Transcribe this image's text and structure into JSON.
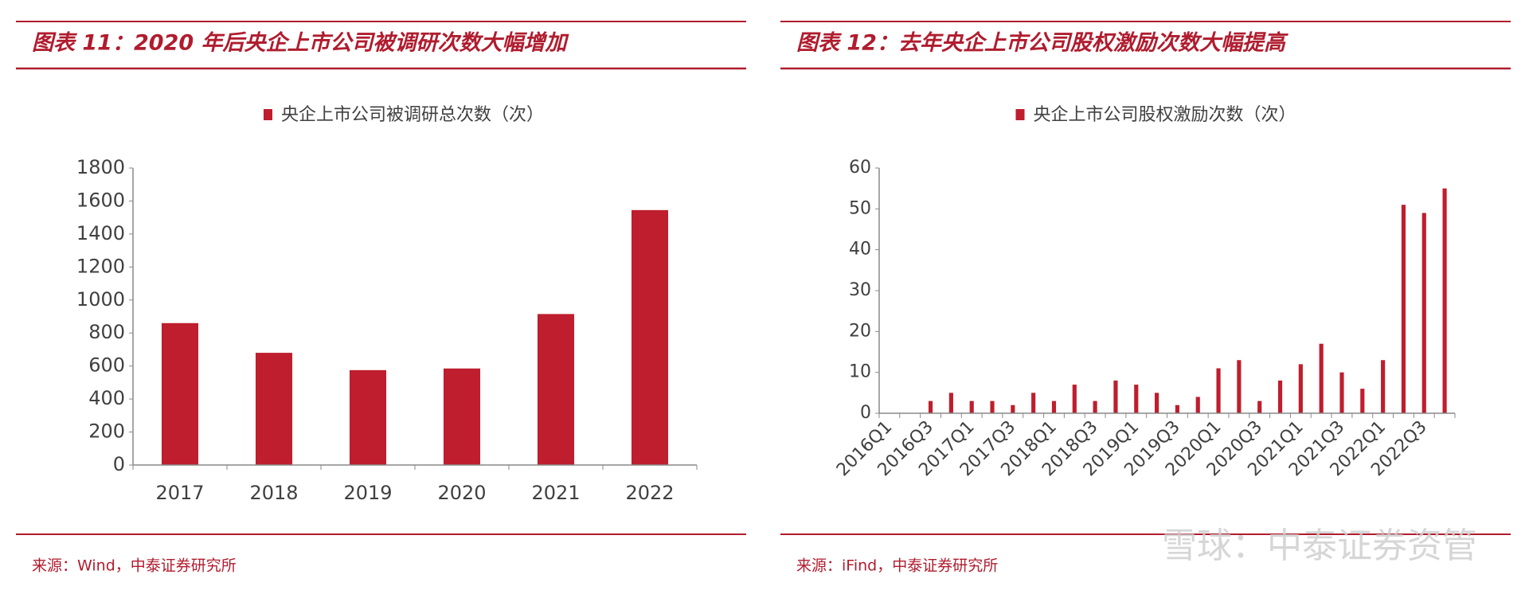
{
  "chart_data": [
    {
      "type": "bar",
      "title": "图表 11：2020 年后央企上市公司被调研次数大幅增加",
      "source": "来源：Wind，中泰证券研究所",
      "categories": [
        "2017",
        "2018",
        "2019",
        "2020",
        "2021",
        "2022"
      ],
      "series": [
        {
          "name": "央企上市公司被调研总次数（次）",
          "color": "#be1e2d",
          "values": [
            860,
            680,
            575,
            585,
            915,
            1545
          ]
        }
      ],
      "ylim": [
        0,
        1800
      ],
      "yticks": [
        0,
        200,
        400,
        600,
        800,
        1000,
        1200,
        1400,
        1600,
        1800
      ],
      "grid": false
    },
    {
      "type": "bar",
      "title": "图表 12：去年央企上市公司股权激励次数大幅提高",
      "source": "来源：iFind，中泰证券研究所",
      "categories": [
        "2016Q1",
        null,
        "2016Q3",
        null,
        "2017Q1",
        null,
        "2017Q3",
        null,
        "2018Q1",
        null,
        "2018Q3",
        null,
        "2019Q1",
        null,
        "2019Q3",
        null,
        "2020Q1",
        null,
        "2020Q3",
        null,
        "2021Q1",
        null,
        "2021Q3",
        null,
        "2022Q1",
        null,
        "2022Q3",
        null
      ],
      "series": [
        {
          "name": "央企上市公司股权激励次数（次）",
          "color": "#be1e2d",
          "values": [
            0,
            0,
            3,
            5,
            3,
            3,
            2,
            5,
            3,
            7,
            3,
            8,
            7,
            5,
            2,
            4,
            11,
            13,
            3,
            8,
            12,
            17,
            10,
            6,
            13,
            51,
            49,
            55
          ]
        }
      ],
      "ylim": [
        0,
        60
      ],
      "yticks": [
        0,
        10,
        20,
        30,
        40,
        50,
        60
      ],
      "grid": false
    }
  ],
  "watermark": "雪球：中泰证券资管"
}
